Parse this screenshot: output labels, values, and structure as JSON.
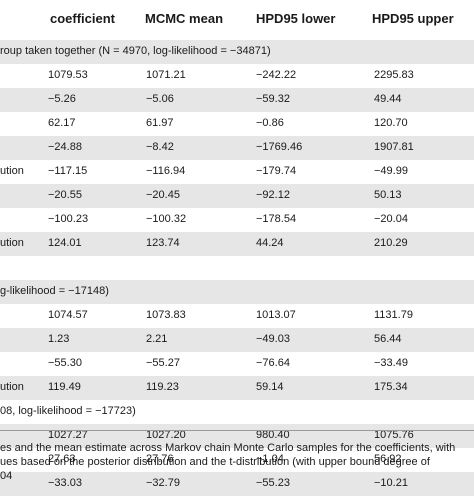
{
  "header": {
    "coefficient": "coefficient",
    "mcmc": "MCMC mean",
    "lower": "HPD95 lower",
    "upper": "HPD95 upper"
  },
  "rows": [
    {
      "label": "roup taken together (N = 4970, log-likelihood = −34871)",
      "group": true
    },
    {
      "label": "",
      "coef": "1079.53",
      "mcmc": "1071.21",
      "lower": "−242.22",
      "upper": "2295.83"
    },
    {
      "label": "",
      "coef": "−5.26",
      "mcmc": "−5.06",
      "lower": "−59.32",
      "upper": "49.44"
    },
    {
      "label": "",
      "coef": "62.17",
      "mcmc": "61.97",
      "lower": "−0.86",
      "upper": "120.70"
    },
    {
      "label": "",
      "coef": "−24.88",
      "mcmc": "−8.42",
      "lower": "−1769.46",
      "upper": "1907.81"
    },
    {
      "label": "ution",
      "coef": "−117.15",
      "mcmc": "−116.94",
      "lower": "−179.74",
      "upper": "−49.99"
    },
    {
      "label": "",
      "coef": "−20.55",
      "mcmc": "−20.45",
      "lower": "−92.12",
      "upper": "50.13"
    },
    {
      "label": "",
      "coef": "−100.23",
      "mcmc": "−100.32",
      "lower": "−178.54",
      "upper": "−20.04"
    },
    {
      "label": "ution",
      "coef": "124.01",
      "mcmc": "123.74",
      "lower": "44.24",
      "upper": "210.29"
    },
    {
      "label": "",
      "group": true
    },
    {
      "label": "g-likelihood = −17148)",
      "group": true
    },
    {
      "label": "",
      "coef": "1074.57",
      "mcmc": "1073.83",
      "lower": "1013.07",
      "upper": "1131.79"
    },
    {
      "label": "",
      "coef": "1.23",
      "mcmc": "2.21",
      "lower": "−49.03",
      "upper": "56.44"
    },
    {
      "label": "",
      "coef": "−55.30",
      "mcmc": "−55.27",
      "lower": "−76.64",
      "upper": "−33.49"
    },
    {
      "label": "ution",
      "coef": "119.49",
      "mcmc": "119.23",
      "lower": "59.14",
      "upper": "175.34"
    },
    {
      "label": "08, log-likelihood = −17723)",
      "group": true
    },
    {
      "label": "",
      "coef": "1027.27",
      "mcmc": "1027.20",
      "lower": "980.40",
      "upper": "1075.76"
    },
    {
      "label": "",
      "coef": "27.63",
      "mcmc": "27.76",
      "lower": "−1.04",
      "upper": "56.92"
    },
    {
      "label": "",
      "coef": "−33.03",
      "mcmc": "−32.79",
      "lower": "−55.23",
      "upper": "−10.21"
    }
  ],
  "caption": [
    "es and the mean estimate across Markov chain Monte Carlo samples for the coefficients, with",
    "ues based on the posterior distribution and the t-distribution (with upper bound degree of",
    "04"
  ]
}
